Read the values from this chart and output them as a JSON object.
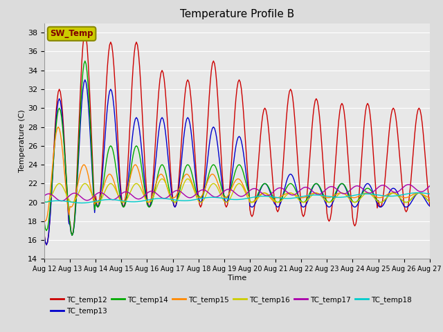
{
  "title": "Temperature Profile B",
  "xlabel": "Time",
  "ylabel": "Temperature (C)",
  "ylim": [
    14,
    39
  ],
  "yticks": [
    14,
    16,
    18,
    20,
    22,
    24,
    26,
    28,
    30,
    32,
    34,
    36,
    38
  ],
  "x_labels": [
    "Aug 12",
    "Aug 13",
    "Aug 14",
    "Aug 15",
    "Aug 16",
    "Aug 17",
    "Aug 18",
    "Aug 19",
    "Aug 20",
    "Aug 21",
    "Aug 22",
    "Aug 23",
    "Aug 24",
    "Aug 25",
    "Aug 26",
    "Aug 27"
  ],
  "colors": {
    "TC_temp12": "#CC0000",
    "TC_temp13": "#0000CC",
    "TC_temp14": "#00AA00",
    "TC_temp15": "#FF8800",
    "TC_temp16": "#CCCC00",
    "TC_temp17": "#AA00AA",
    "TC_temp18": "#00CCCC"
  },
  "sw_temp_box_color": "#CCCC00",
  "sw_temp_text_color": "#800000",
  "plot_background": "#E8E8E8",
  "fig_background": "#DCDCDC"
}
